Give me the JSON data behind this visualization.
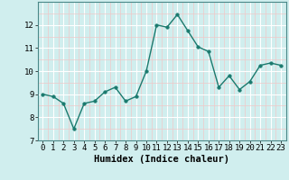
{
  "x": [
    0,
    1,
    2,
    3,
    4,
    5,
    6,
    7,
    8,
    9,
    10,
    11,
    12,
    13,
    14,
    15,
    16,
    17,
    18,
    19,
    20,
    21,
    22,
    23
  ],
  "y": [
    9.0,
    8.9,
    8.6,
    7.5,
    8.6,
    8.7,
    9.1,
    9.3,
    8.7,
    8.9,
    10.0,
    12.0,
    11.9,
    12.45,
    11.75,
    11.05,
    10.85,
    9.3,
    9.8,
    9.2,
    9.55,
    10.25,
    10.35,
    10.25
  ],
  "line_color": "#1a7a6e",
  "marker": "o",
  "markersize": 2.5,
  "linewidth": 1.0,
  "xlabel": "Humidex (Indice chaleur)",
  "xlim": [
    -0.5,
    23.5
  ],
  "ylim": [
    7,
    13
  ],
  "yticks": [
    7,
    8,
    9,
    10,
    11,
    12
  ],
  "xticks": [
    0,
    1,
    2,
    3,
    4,
    5,
    6,
    7,
    8,
    9,
    10,
    11,
    12,
    13,
    14,
    15,
    16,
    17,
    18,
    19,
    20,
    21,
    22,
    23
  ],
  "bg_color": "#d0eeee",
  "grid_major_color": "#ffffff",
  "grid_minor_color": "#f0c8c8",
  "axis_color": "#4a8888",
  "tick_fontsize": 6.5,
  "xlabel_fontsize": 7.5
}
